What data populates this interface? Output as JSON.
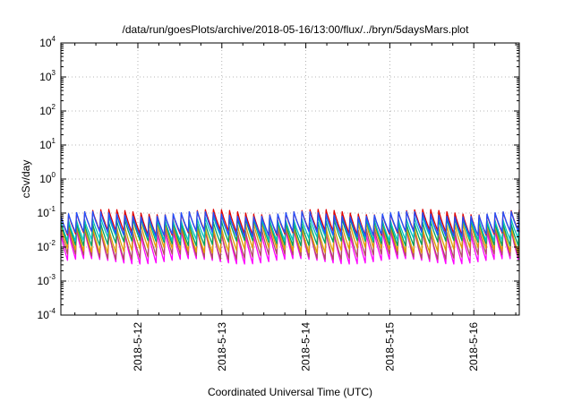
{
  "chart_data": {
    "type": "line",
    "title": "/data/run/goesPlots/archive/2018-05-16/13:00/flux/../bryn/5daysMars.plot",
    "xlabel": "Coordinated Universal Time (UTC)",
    "ylabel": "cSv/day",
    "yscale": "log",
    "ylim": [
      0.0001,
      10000
    ],
    "xlim": [
      "2018-05-11 02:00",
      "2018-05-16 13:00"
    ],
    "grid": true,
    "x_tick_labels": [
      "2018-5-12",
      "2018-5-13",
      "2018-5-14",
      "2018-5-15",
      "2018-5-16"
    ],
    "x_ticks_days": [
      1,
      2,
      3,
      4,
      5
    ],
    "y_tick_exponents": [
      "4",
      "3",
      "2",
      "1",
      "0",
      "-1",
      "-2",
      "-3",
      "-4"
    ],
    "y_tick_base": "10",
    "period_hours": 2.3,
    "series": [
      {
        "color": "#ff00ff",
        "peak": 0.028,
        "trough": 0.0038
      },
      {
        "color": "#b05060",
        "peak": 0.033,
        "trough": 0.0052
      },
      {
        "color": "#e0a000",
        "peak": 0.045,
        "trough": 0.008
      },
      {
        "color": "#00a060",
        "peak": 0.06,
        "trough": 0.013
      },
      {
        "color": "#00c0c0",
        "peak": 0.075,
        "trough": 0.018
      },
      {
        "color": "#e00000",
        "peak": 0.11,
        "trough": 0.026
      },
      {
        "color": "#2050ff",
        "peak": 0.095,
        "trough": 0.024
      }
    ]
  }
}
